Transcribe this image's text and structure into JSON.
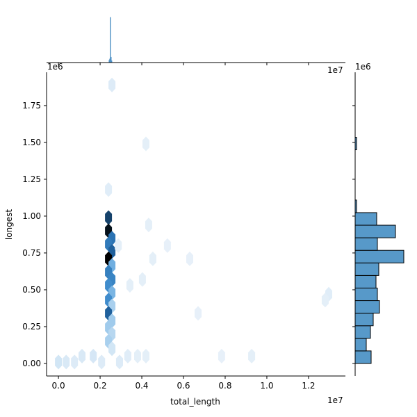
{
  "chart_data": {
    "type": "hexbin",
    "x_label": "total_length",
    "y_label": "longest",
    "x_offset_label": "1e7",
    "y_offset_label": "1e6",
    "xlim": [
      -570000,
      13770000
    ],
    "ylim": [
      -85000,
      1976000
    ],
    "xticks": [
      {
        "value": 0,
        "label": "0.0"
      },
      {
        "value": 2000000,
        "label": "0.2"
      },
      {
        "value": 4000000,
        "label": "0.4"
      },
      {
        "value": 6000000,
        "label": "0.6"
      },
      {
        "value": 8000000,
        "label": "0.8"
      },
      {
        "value": 10000000,
        "label": "1.0"
      },
      {
        "value": 12000000,
        "label": "1.2"
      }
    ],
    "yticks": [
      {
        "value": 0,
        "label": "0.00"
      },
      {
        "value": 250000,
        "label": "0.25"
      },
      {
        "value": 500000,
        "label": "0.50"
      },
      {
        "value": 750000,
        "label": "0.75"
      },
      {
        "value": 1000000,
        "label": "1.00"
      },
      {
        "value": 1250000,
        "label": "1.25"
      },
      {
        "value": 1500000,
        "label": "1.50"
      },
      {
        "value": 1750000,
        "label": "1.75"
      }
    ],
    "colormap": [
      "#eef4fa",
      "#a9d0ee",
      "#4a99d8",
      "#2166a6",
      "#0d2a44",
      "#000000"
    ],
    "count_max": 100,
    "hexes": {
      "x": [
        2400000,
        2400000,
        2567000,
        2400000,
        2567000,
        2400000,
        2567000,
        2400000,
        2567000,
        2400000,
        2567000,
        2400000,
        2567000,
        2400000,
        2567000,
        2400000,
        2567000,
        2400000,
        2567000,
        2400000,
        2567000,
        0,
        370000,
        770000,
        1130000,
        1670000,
        2070000,
        2930000,
        3330000,
        3800000,
        4200000,
        4200000,
        4330000,
        2870000,
        5230000,
        4530000,
        6300000,
        4030000,
        3430000,
        12970000,
        12800000,
        6700000,
        7830000,
        9270000
      ],
      "y": [
        990000,
        900000,
        850000,
        810000,
        760000,
        710000,
        665000,
        620000,
        570000,
        530000,
        480000,
        430000,
        390000,
        340000,
        290000,
        245000,
        200000,
        150000,
        100000,
        1180000,
        1890000,
        10000,
        10000,
        10000,
        50000,
        50000,
        10000,
        10000,
        50000,
        50000,
        50000,
        1490000,
        940000,
        800000,
        800000,
        710000,
        710000,
        570000,
        530000,
        470000,
        430000,
        340000,
        50000,
        50000
      ],
      "counts": [
        72,
        92,
        55,
        52,
        62,
        100,
        32,
        50,
        48,
        45,
        30,
        45,
        20,
        62,
        22,
        22,
        16,
        20,
        8,
        4,
        5,
        8,
        6,
        5,
        6,
        7,
        5,
        5,
        4,
        3,
        3,
        3,
        3,
        3,
        2,
        3,
        2,
        3,
        3,
        4,
        3,
        2,
        2,
        3
      ]
    },
    "marginal_x": {
      "bins": [
        2420000,
        2450000,
        2480000,
        2510000,
        2540000,
        2570000
      ],
      "counts": [
        5,
        8,
        100,
        12,
        4
      ],
      "count_lim": [
        0,
        100
      ],
      "color": "#4c8fc4"
    },
    "marginal_y": {
      "bins": [
        0,
        85300,
        170600,
        255900,
        341200,
        426500,
        511800,
        597100,
        682400,
        767700,
        853000,
        938300,
        1023600,
        1109000,
        1450000,
        1535000
      ],
      "counts": [
        23,
        16,
        22,
        26,
        35,
        32,
        30,
        34,
        70,
        32,
        58,
        31,
        2,
        0,
        2
      ],
      "count_lim": [
        0,
        84
      ],
      "color": "#5799c9"
    }
  }
}
